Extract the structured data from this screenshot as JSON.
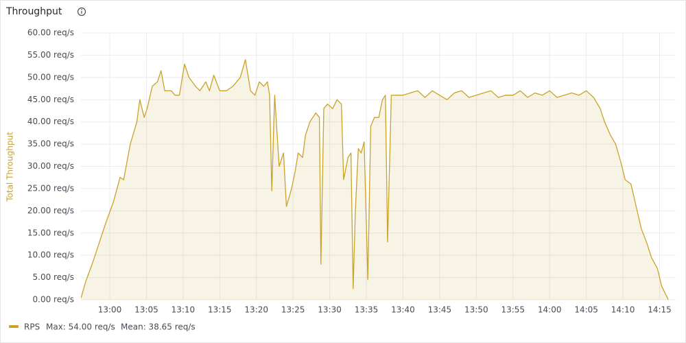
{
  "title": "Throughput",
  "chart_data": {
    "type": "line",
    "ylabel": "Total Throughput",
    "x": [
      776.1,
      776.7,
      777.7,
      778.6,
      779.5,
      780.5,
      781.4,
      781.9,
      782.8,
      783.7,
      784.1,
      784.7,
      785.1,
      785.8,
      786.5,
      787.0,
      787.5,
      788.4,
      788.9,
      789.5,
      790.2,
      790.8,
      791.7,
      792.3,
      793.1,
      793.6,
      794.2,
      795.0,
      795.9,
      796.8,
      797.8,
      798.5,
      799.2,
      799.8,
      800.4,
      801.0,
      801.5,
      801.8,
      802.1,
      802.5,
      803.1,
      803.7,
      804.1,
      804.8,
      805.3,
      805.7,
      806.3,
      806.7,
      807.3,
      808.1,
      808.6,
      808.8,
      809.2,
      809.7,
      810.4,
      811.0,
      811.6,
      811.9,
      812.5,
      812.9,
      813.2,
      813.5,
      813.9,
      814.3,
      814.7,
      815.2,
      815.6,
      816.1,
      816.7,
      817.2,
      817.6,
      817.9,
      818.4,
      819.3,
      820,
      821,
      822,
      823,
      824,
      825,
      826,
      827,
      828,
      829,
      830,
      831,
      832,
      833,
      834,
      835,
      836,
      837,
      838,
      839,
      840,
      841,
      842,
      843,
      844,
      845,
      846,
      846.9,
      847.5,
      848.3,
      849.0,
      849.7,
      850.3,
      851.1,
      851.8,
      852.5,
      853.2,
      853.9,
      854.7,
      855.3,
      856.2
    ],
    "series": [
      {
        "name": "RPS",
        "color": "#c9a227",
        "values": [
          0.5,
          4,
          8.5,
          13,
          17.5,
          22,
          27.5,
          27,
          35,
          40,
          45,
          41,
          43,
          48,
          49,
          51.5,
          47,
          47,
          46,
          46,
          53,
          50,
          48,
          47,
          49,
          47,
          50.5,
          47,
          47,
          48,
          50,
          54,
          47,
          46,
          49,
          48,
          49,
          46,
          24.5,
          46,
          30,
          33,
          21,
          25,
          29,
          33,
          32,
          37,
          40,
          42,
          41,
          8,
          43,
          44,
          43,
          45,
          44,
          27,
          32,
          33,
          2.5,
          20,
          34,
          33,
          35.5,
          4.5,
          39,
          41,
          41,
          45,
          46,
          13,
          46,
          46,
          46,
          46.5,
          47,
          45.5,
          47,
          46,
          45,
          46.5,
          47,
          45.5,
          46,
          46.5,
          47,
          45.5,
          46,
          46,
          47,
          45.5,
          46.5,
          46,
          47,
          45.5,
          46,
          46.5,
          46,
          47,
          45.5,
          43,
          40,
          37,
          35,
          31,
          27,
          26,
          21,
          16,
          13,
          9.5,
          7,
          3,
          0
        ]
      }
    ],
    "legend_stats": [
      "Max: 54.00 req/s",
      "Mean: 38.65 req/s"
    ],
    "xlim": [
      776.07,
      857.2
    ],
    "xticks": [
      {
        "value": 780,
        "label": "13:00"
      },
      {
        "value": 785,
        "label": "13:05"
      },
      {
        "value": 790,
        "label": "13:10"
      },
      {
        "value": 795,
        "label": "13:15"
      },
      {
        "value": 800,
        "label": "13:20"
      },
      {
        "value": 805,
        "label": "13:25"
      },
      {
        "value": 810,
        "label": "13:30"
      },
      {
        "value": 815,
        "label": "13:35"
      },
      {
        "value": 820,
        "label": "13:40"
      },
      {
        "value": 825,
        "label": "13:45"
      },
      {
        "value": 830,
        "label": "13:50"
      },
      {
        "value": 835,
        "label": "13:55"
      },
      {
        "value": 840,
        "label": "14:00"
      },
      {
        "value": 845,
        "label": "14:05"
      },
      {
        "value": 850,
        "label": "14:10"
      },
      {
        "value": 855,
        "label": "14:15"
      }
    ],
    "ylim": [
      0,
      60
    ],
    "yticks": [
      {
        "value": 0,
        "label": "0.00 req/s"
      },
      {
        "value": 5,
        "label": "5.00 req/s"
      },
      {
        "value": 10,
        "label": "10.00 req/s"
      },
      {
        "value": 15,
        "label": "15.00 req/s"
      },
      {
        "value": 20,
        "label": "20.00 req/s"
      },
      {
        "value": 25,
        "label": "25.00 req/s"
      },
      {
        "value": 30,
        "label": "30.00 req/s"
      },
      {
        "value": 35,
        "label": "35.00 req/s"
      },
      {
        "value": 40,
        "label": "40.00 req/s"
      },
      {
        "value": 45,
        "label": "45.00 req/s"
      },
      {
        "value": 50,
        "label": "50.00 req/s"
      },
      {
        "value": 55,
        "label": "55.00 req/s"
      },
      {
        "value": 60,
        "label": "60.00 req/s"
      }
    ],
    "grid": true
  }
}
